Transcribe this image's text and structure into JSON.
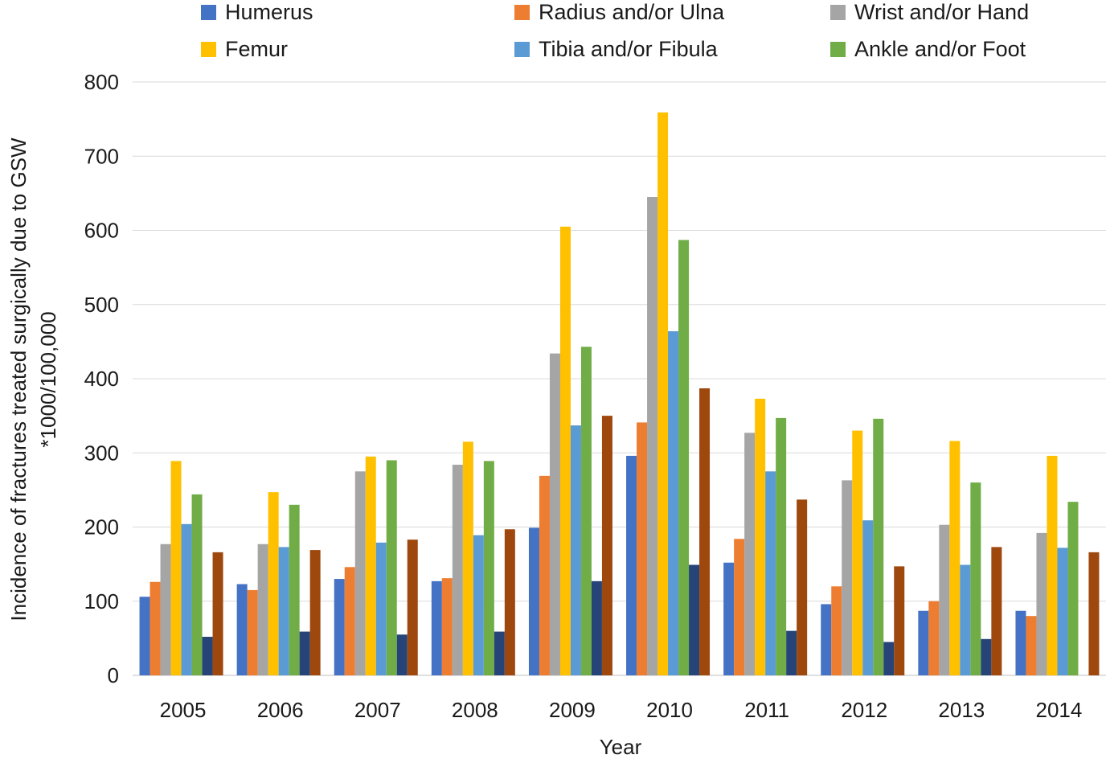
{
  "chart_data": {
    "type": "bar",
    "title": "",
    "xlabel": "Year",
    "ylabel_line1": "Incidence of fractures treated surgically due to GSW",
    "ylabel_line2": "*1000/100,000",
    "ylim": [
      0,
      800
    ],
    "yticks": [
      0,
      100,
      200,
      300,
      400,
      500,
      600,
      700,
      800
    ],
    "grid": true,
    "legend_position": "top",
    "categories": [
      "2005",
      "2006",
      "2007",
      "2008",
      "2009",
      "2010",
      "2011",
      "2012",
      "2013",
      "2014"
    ],
    "series": [
      {
        "name": "Humerus",
        "color": "#4472c4",
        "values": [
          106,
          123,
          130,
          127,
          199,
          296,
          152,
          96,
          87,
          87
        ]
      },
      {
        "name": "Radius and/or Ulna",
        "color": "#ed7d31",
        "values": [
          126,
          115,
          146,
          131,
          269,
          341,
          184,
          120,
          100,
          80
        ]
      },
      {
        "name": "Wrist and/or Hand",
        "color": "#a5a5a5",
        "values": [
          177,
          177,
          275,
          284,
          434,
          645,
          327,
          263,
          203,
          192
        ]
      },
      {
        "name": "Femur",
        "color": "#ffc000",
        "values": [
          289,
          247,
          295,
          315,
          605,
          759,
          373,
          330,
          316,
          296
        ]
      },
      {
        "name": "Tibia and/or Fibula",
        "color": "#5b9bd5",
        "values": [
          204,
          173,
          179,
          189,
          337,
          464,
          275,
          209,
          149,
          172
        ]
      },
      {
        "name": "Ankle and/or Foot",
        "color": "#70ad47",
        "values": [
          244,
          230,
          290,
          289,
          443,
          587,
          347,
          346,
          260,
          234
        ]
      },
      {
        "name": "",
        "color": "#264478",
        "values": [
          52,
          59,
          55,
          59,
          127,
          149,
          60,
          45,
          49,
          0
        ]
      },
      {
        "name": "",
        "color": "#9e480e",
        "values": [
          166,
          169,
          183,
          197,
          350,
          387,
          237,
          147,
          173,
          166
        ]
      }
    ]
  }
}
